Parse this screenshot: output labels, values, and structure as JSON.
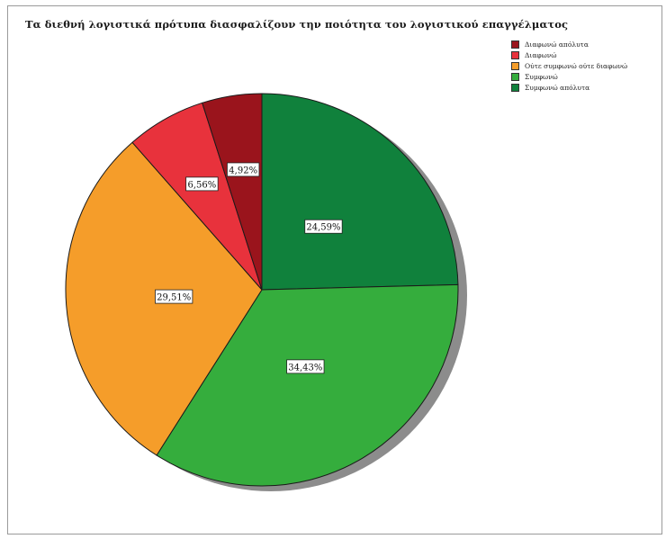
{
  "chart_data": {
    "type": "pie",
    "title": "Τα διεθνή λογιστικά πρότυπα διασφαλίζουν την ποιότητα του λογιστικού επαγγέλματος",
    "slices": [
      {
        "label": "Συμφωνώ απόλυτα",
        "value": 24.59,
        "display": "24,59%",
        "color": "#10813c"
      },
      {
        "label": "Συμφωνώ",
        "value": 34.43,
        "display": "34,43%",
        "color": "#35ad3d"
      },
      {
        "label": "Ούτε συμφωνώ ούτε διαφωνώ",
        "value": 29.51,
        "display": "29,51%",
        "color": "#f59d2a"
      },
      {
        "label": "Διαφωνώ",
        "value": 6.56,
        "display": "6,56%",
        "color": "#e8323c"
      },
      {
        "label": "Διαφωνώ απόλυτα",
        "value": 4.92,
        "display": "4,92%",
        "color": "#9a141c"
      }
    ],
    "legend": {
      "placement": "top-right",
      "order": [
        "Διαφωνώ απόλυτα",
        "Διαφωνώ",
        "Ούτε συμφωνώ ούτε διαφωνώ",
        "Συμφωνώ",
        "Συμφωνώ απόλυτα"
      ]
    },
    "start_angle_deg": 0,
    "direction": "clockwise",
    "shadow": true
  }
}
